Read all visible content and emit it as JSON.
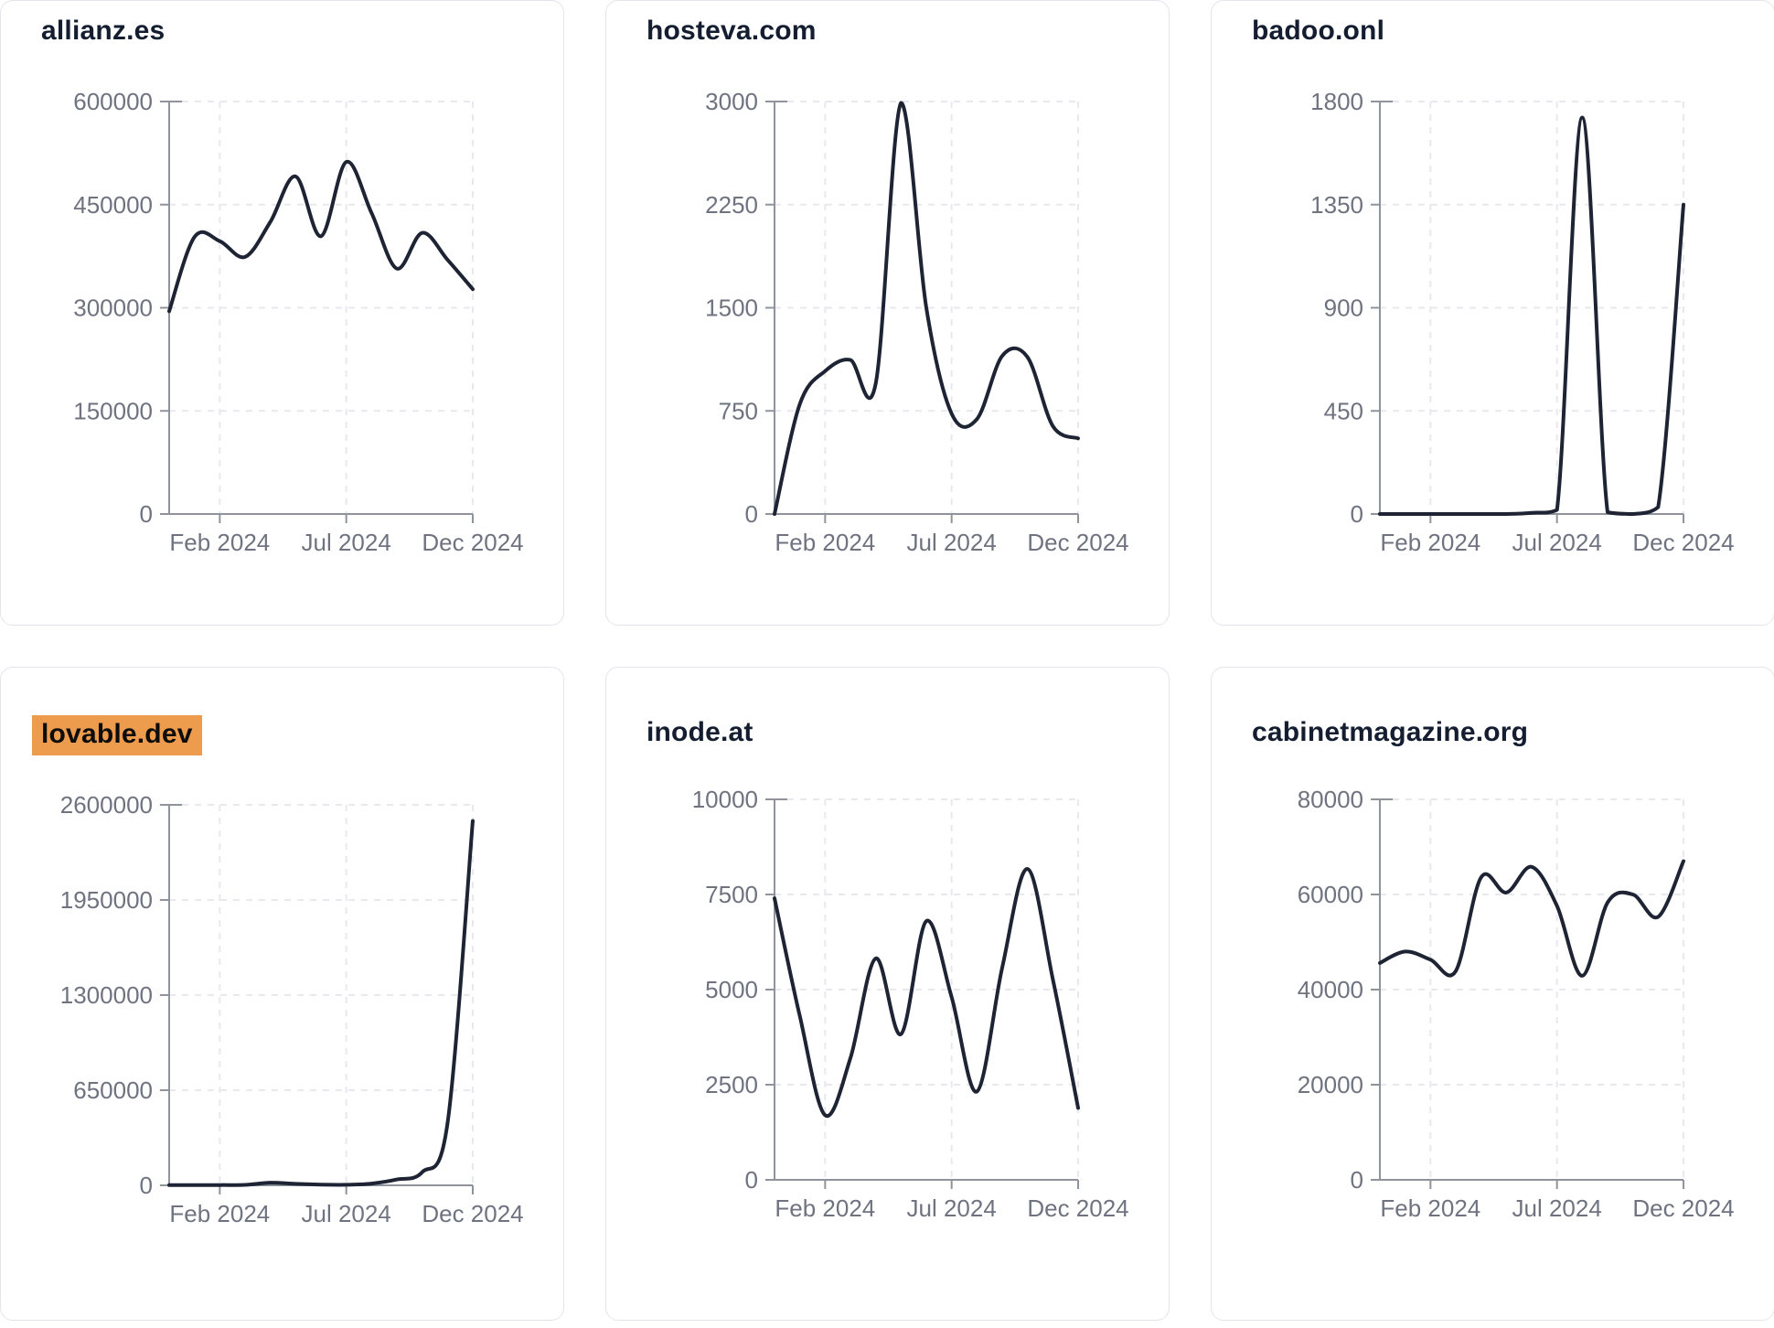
{
  "page": {
    "background_color": "#ffffff"
  },
  "style": {
    "series_line_color": "#1e2433",
    "axis_color": "#8e939c",
    "grid_color": "#e8e9ee",
    "tick_label_color": "#6f7380",
    "title_color": "#141e30",
    "card_border_color": "#e3e5ec",
    "highlight_background_color": "#ed9c4d",
    "highlight_text_color": "#0d0d0d"
  },
  "x_axis": {
    "tick_labels": [
      "Feb 2024",
      "Jul 2024",
      "Dec 2024"
    ],
    "tick_month_index": [
      2,
      7,
      12
    ],
    "range_note": "13 monthly points, Dec 2023 through Dec 2024",
    "grid": "dashed vertical gridlines at each labeled tick"
  },
  "chart_data": [
    {
      "type": "line",
      "title": "allianz.es",
      "highlighted": false,
      "ylim": [
        0,
        600000
      ],
      "y_ticks": [
        0,
        150000,
        300000,
        450000,
        600000
      ],
      "x": "month_index_0_to_12",
      "values": [
        295000,
        403000,
        397000,
        374000,
        425000,
        491000,
        404000,
        512000,
        438000,
        357000,
        409000,
        370000,
        327000
      ]
    },
    {
      "type": "line",
      "title": "hosteva.com",
      "highlighted": false,
      "ylim": [
        0,
        3000
      ],
      "y_ticks": [
        0,
        750,
        1500,
        2250,
        3000
      ],
      "x": "month_index_0_to_12",
      "values": [
        0,
        800,
        1040,
        1120,
        950,
        2990,
        1500,
        730,
        690,
        1150,
        1140,
        640,
        550
      ]
    },
    {
      "type": "line",
      "title": "badoo.onl",
      "highlighted": false,
      "ylim": [
        0,
        1800
      ],
      "y_ticks": [
        0,
        450,
        900,
        1350,
        1800
      ],
      "x": "month_index_0_to_12",
      "values": [
        0,
        0,
        0,
        0,
        0,
        0,
        5,
        18,
        1730,
        8,
        0,
        30,
        1350
      ]
    },
    {
      "type": "line",
      "title": "lovable.dev",
      "highlighted": true,
      "ylim": [
        0,
        2600000
      ],
      "y_ticks": [
        0,
        650000,
        1300000,
        1950000,
        2600000
      ],
      "x": "month_index_0_to_12",
      "values": [
        1500,
        1500,
        2000,
        3000,
        18000,
        10000,
        5000,
        4000,
        12000,
        40000,
        90000,
        420000,
        2490000
      ]
    },
    {
      "type": "line",
      "title": "inode.at",
      "highlighted": false,
      "ylim": [
        0,
        10000
      ],
      "y_ticks": [
        0,
        2500,
        5000,
        7500,
        10000
      ],
      "x": "month_index_0_to_12",
      "values": [
        7400,
        4300,
        1700,
        3200,
        5820,
        3830,
        6800,
        4800,
        2320,
        5580,
        8170,
        5280,
        1890
      ]
    },
    {
      "type": "line",
      "title": "cabinetmagazine.org",
      "highlighted": false,
      "ylim": [
        0,
        80000
      ],
      "y_ticks": [
        0,
        20000,
        40000,
        60000,
        80000
      ],
      "x": "month_index_0_to_12",
      "values": [
        45600,
        48000,
        46300,
        43900,
        63600,
        60400,
        65800,
        57600,
        42900,
        58300,
        60000,
        55300,
        67000
      ]
    }
  ]
}
